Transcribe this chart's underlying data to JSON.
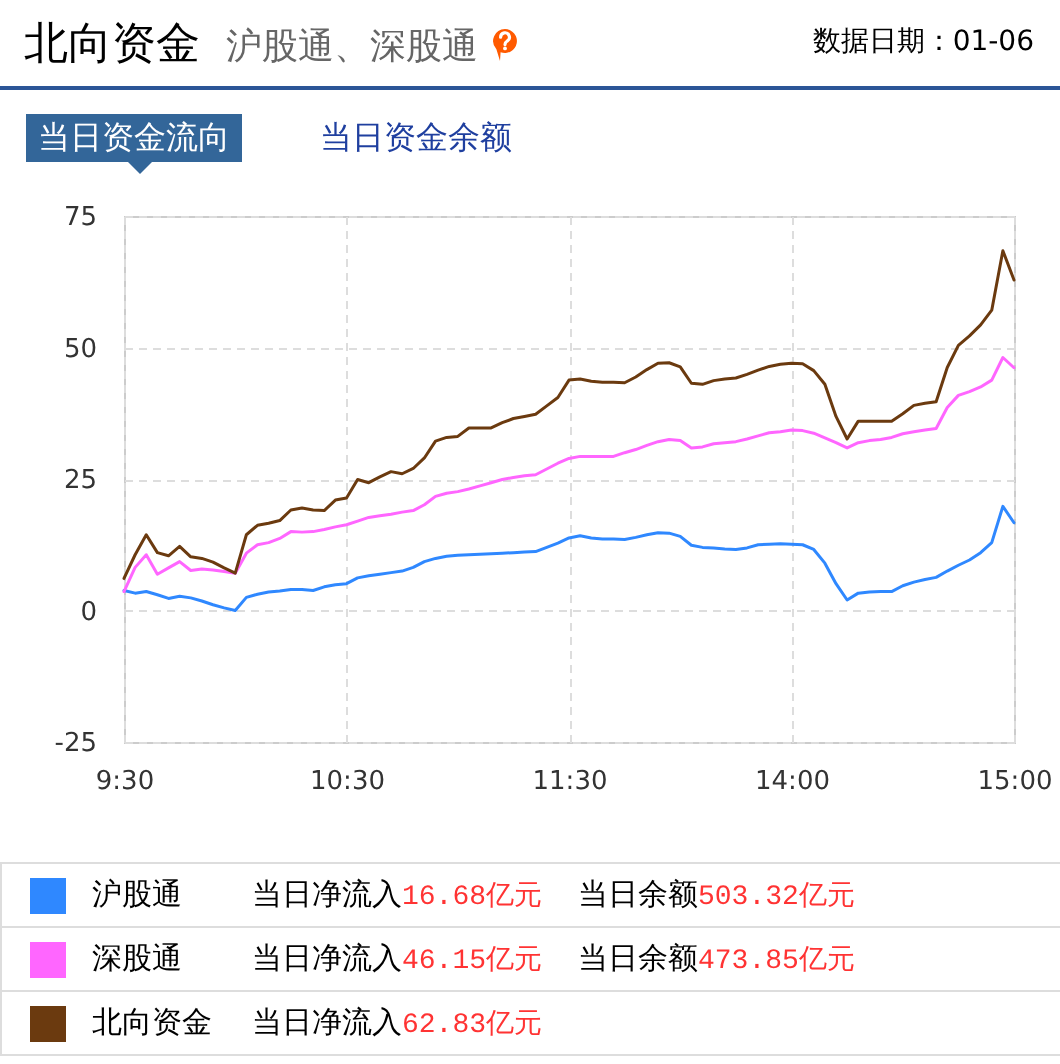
{
  "chart_data": {
    "type": "line",
    "title": "北向资金",
    "subtitle": "沪股通、深股通",
    "annotations": [
      "数据日期：01-06",
      "当日资金流向",
      "当日资金余额",
      "当日净流入16.68亿元",
      "当日余额503.32亿元",
      "当日净流入46.15亿元",
      "当日余额473.85亿元",
      "当日净流入62.83亿元"
    ],
    "categories": [
      "9:30",
      null,
      null,
      null,
      null,
      null,
      null,
      null,
      null,
      null,
      null,
      null,
      null,
      null,
      null,
      null,
      null,
      null,
      null,
      null,
      "10:30",
      null,
      null,
      null,
      null,
      null,
      null,
      null,
      null,
      null,
      null,
      null,
      null,
      null,
      null,
      null,
      null,
      null,
      null,
      null,
      "11:30",
      null,
      null,
      null,
      null,
      null,
      null,
      null,
      null,
      null,
      null,
      null,
      null,
      null,
      null,
      null,
      null,
      null,
      null,
      null,
      "14:00",
      null,
      null,
      null,
      null,
      null,
      null,
      null,
      null,
      null,
      null,
      null,
      null,
      null,
      null,
      null,
      null,
      null,
      null,
      null,
      "15:00"
    ],
    "ylim": [
      -25,
      75
    ],
    "yticks": [
      -25,
      0,
      25,
      50,
      75
    ],
    "grid": true,
    "legend": "bottom",
    "series": [
      {
        "name": "沪股通",
        "color": "#2f88ff",
        "values": [
          3.8,
          3.3,
          3.6,
          3.0,
          2.3,
          2.7,
          2.4,
          1.8,
          1.1,
          0.5,
          0.0,
          2.5,
          3.1,
          3.5,
          3.7,
          4.0,
          4.0,
          3.8,
          4.5,
          4.9,
          5.1,
          6.2,
          6.6,
          6.9,
          7.2,
          7.5,
          8.2,
          9.3,
          9.9,
          10.3,
          10.5,
          10.6,
          10.7,
          10.8,
          10.9,
          11.0,
          11.1,
          11.2,
          12.0,
          12.8,
          13.8,
          14.2,
          13.8,
          13.6,
          13.6,
          13.5,
          13.9,
          14.4,
          14.8,
          14.7,
          14.1,
          12.4,
          12.0,
          11.9,
          11.7,
          11.6,
          11.9,
          12.5,
          12.6,
          12.7,
          12.6,
          12.5,
          11.6,
          9.0,
          5.1,
          2.0,
          3.3,
          3.5,
          3.6,
          3.6,
          4.7,
          5.4,
          5.9,
          6.3,
          7.5,
          8.6,
          9.6,
          11.0,
          12.9,
          19.8,
          16.68
        ]
      },
      {
        "name": "深股通",
        "color": "#ff66ff",
        "values": [
          3.6,
          8.2,
          10.6,
          6.9,
          8.1,
          9.3,
          7.6,
          7.9,
          7.7,
          7.4,
          7.1,
          10.9,
          12.5,
          12.9,
          13.7,
          15.0,
          14.9,
          15.0,
          15.4,
          15.9,
          16.3,
          17.0,
          17.7,
          18.0,
          18.3,
          18.7,
          19.0,
          20.1,
          21.7,
          22.3,
          22.6,
          23.1,
          23.7,
          24.3,
          24.9,
          25.3,
          25.6,
          25.8,
          26.9,
          28.0,
          28.9,
          29.3,
          29.3,
          29.3,
          29.3,
          30.0,
          30.6,
          31.4,
          32.1,
          32.5,
          32.3,
          30.9,
          31.1,
          31.7,
          31.9,
          32.1,
          32.6,
          33.2,
          33.8,
          34.0,
          34.3,
          34.2,
          33.7,
          32.8,
          31.9,
          30.9,
          31.9,
          32.3,
          32.5,
          32.9,
          33.6,
          34.0,
          34.3,
          34.6,
          38.6,
          40.9,
          41.6,
          42.5,
          43.8,
          48.1,
          46.15
        ]
      },
      {
        "name": "北向资金",
        "color": "#6b3a0f",
        "values": [
          6.1,
          10.6,
          14.4,
          11.0,
          10.4,
          12.2,
          10.2,
          9.9,
          9.2,
          8.1,
          7.1,
          14.4,
          16.2,
          16.6,
          17.1,
          19.1,
          19.5,
          19.1,
          19.0,
          21.0,
          21.4,
          24.9,
          24.3,
          25.4,
          26.4,
          26.0,
          27.0,
          29.0,
          32.2,
          32.9,
          33.1,
          34.7,
          34.7,
          34.7,
          35.7,
          36.5,
          36.9,
          37.3,
          38.9,
          40.5,
          43.8,
          44.0,
          43.6,
          43.4,
          43.4,
          43.3,
          44.4,
          45.8,
          47.0,
          47.1,
          46.3,
          43.2,
          43.0,
          43.7,
          44.0,
          44.2,
          44.9,
          45.7,
          46.4,
          46.8,
          47.0,
          46.9,
          45.6,
          43.0,
          36.9,
          32.6,
          36.0,
          36.0,
          36.0,
          36.0,
          37.4,
          39.0,
          39.4,
          39.7,
          46.2,
          50.4,
          52.2,
          54.3,
          57.1,
          68.4,
          62.83
        ]
      }
    ]
  }
}
